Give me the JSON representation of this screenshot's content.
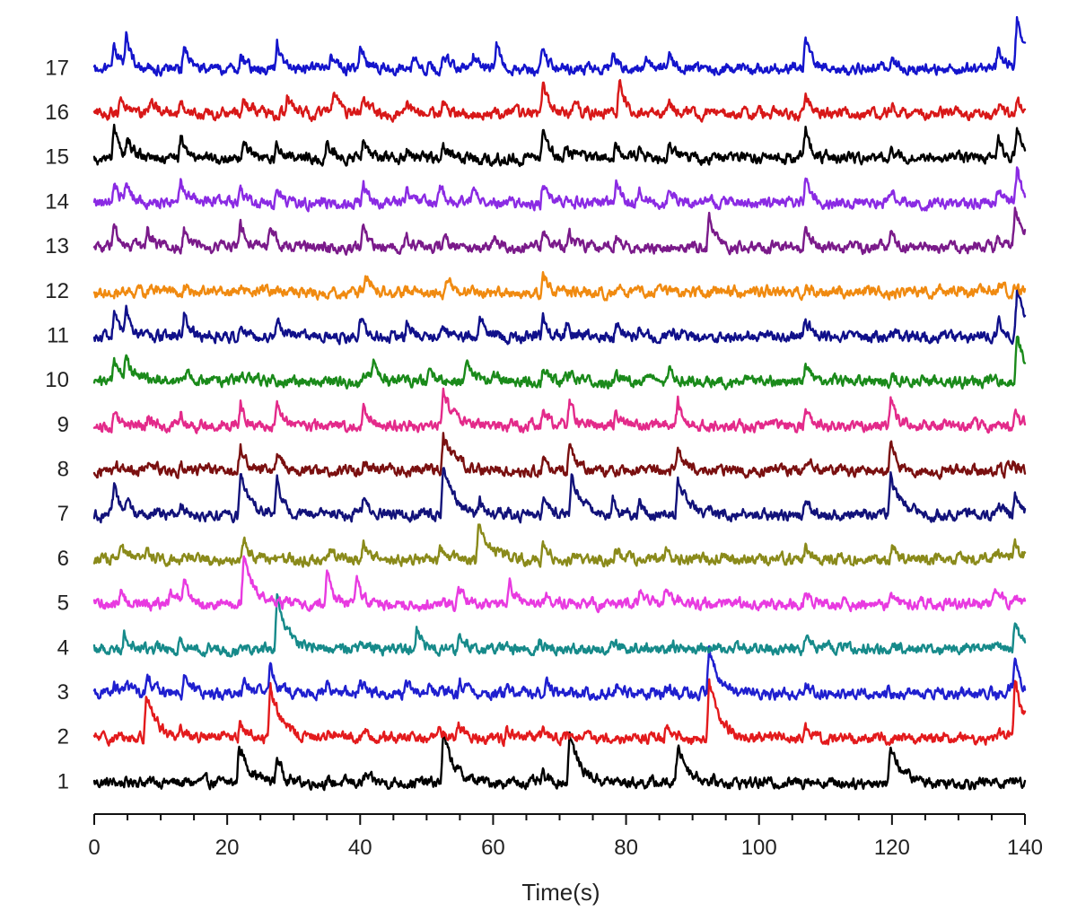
{
  "chart_data": {
    "type": "line",
    "xlabel": "Time(s)",
    "xlim": [
      0,
      140
    ],
    "x_major_ticks": [
      0,
      20,
      40,
      60,
      80,
      100,
      120,
      140
    ],
    "x_minor_step": 5,
    "ylabel": "",
    "grid": false,
    "series": [
      {
        "name": "1",
        "color": "#000000",
        "events": [
          [
            6,
            0.08
          ],
          [
            9,
            0.05
          ],
          [
            16,
            0.06
          ],
          [
            21.8,
            1.0
          ],
          [
            27.5,
            0.7
          ],
          [
            40.8,
            0.18
          ],
          [
            52.5,
            1.3
          ],
          [
            67.5,
            0.2
          ],
          [
            71.5,
            1.3
          ],
          [
            87.8,
            1.0
          ],
          [
            107,
            0.15
          ],
          [
            119.8,
            1.0
          ],
          [
            137.5,
            0.12
          ]
        ]
      },
      {
        "name": "2",
        "color": "#e31a1c",
        "events": [
          [
            7.8,
            1.2
          ],
          [
            13,
            0.3
          ],
          [
            22,
            0.45
          ],
          [
            26.5,
            1.4
          ],
          [
            35,
            0.2
          ],
          [
            40.5,
            0.25
          ],
          [
            52,
            0.25
          ],
          [
            54.8,
            0.4
          ],
          [
            62,
            0.2
          ],
          [
            67.5,
            0.25
          ],
          [
            78,
            0.12
          ],
          [
            86,
            0.2
          ],
          [
            92.5,
            1.5
          ],
          [
            107,
            0.2
          ],
          [
            135.5,
            0.15
          ],
          [
            138.5,
            1.5
          ]
        ]
      },
      {
        "name": "3",
        "color": "#1f1fcf",
        "events": [
          [
            3,
            0.2
          ],
          [
            5,
            0.3
          ],
          [
            8,
            0.6
          ],
          [
            13.5,
            0.6
          ],
          [
            22.5,
            0.35
          ],
          [
            26.5,
            0.8
          ],
          [
            35,
            0.25
          ],
          [
            40,
            0.35
          ],
          [
            47,
            0.25
          ],
          [
            50,
            0.2
          ],
          [
            55,
            0.3
          ],
          [
            62,
            0.2
          ],
          [
            68,
            0.4
          ],
          [
            78.5,
            0.25
          ],
          [
            86,
            0.2
          ],
          [
            92.5,
            1.1
          ],
          [
            107,
            0.3
          ],
          [
            119.5,
            0.1
          ],
          [
            137.5,
            0.25
          ],
          [
            138.5,
            0.9
          ]
        ]
      },
      {
        "name": "4",
        "color": "#168a8a",
        "events": [
          [
            4.5,
            0.4
          ],
          [
            13,
            0.25
          ],
          [
            22,
            0.15
          ],
          [
            27.5,
            1.3
          ],
          [
            40,
            0.3
          ],
          [
            48.5,
            0.5
          ],
          [
            55,
            0.3
          ],
          [
            67,
            0.2
          ],
          [
            78,
            0.2
          ],
          [
            87,
            0.15
          ],
          [
            107,
            0.25
          ],
          [
            120,
            0.12
          ],
          [
            138.5,
            0.8
          ]
        ]
      },
      {
        "name": "5",
        "color": "#e83ae0",
        "events": [
          [
            4,
            0.3
          ],
          [
            11.5,
            0.4
          ],
          [
            13.5,
            0.7
          ],
          [
            22.5,
            1.2
          ],
          [
            35,
            0.9
          ],
          [
            39.5,
            0.6
          ],
          [
            54.8,
            0.6
          ],
          [
            62.5,
            0.5
          ],
          [
            68,
            0.3
          ],
          [
            82,
            0.3
          ],
          [
            86,
            0.5
          ],
          [
            107,
            0.3
          ],
          [
            120,
            0.15
          ],
          [
            135.5,
            0.5
          ]
        ]
      },
      {
        "name": "6",
        "color": "#8a8a1a",
        "events": [
          [
            4,
            0.3
          ],
          [
            8,
            0.3
          ],
          [
            13.5,
            0.25
          ],
          [
            22.5,
            0.55
          ],
          [
            35.5,
            0.25
          ],
          [
            40.5,
            0.45
          ],
          [
            52,
            0.3
          ],
          [
            57.8,
            1.05
          ],
          [
            67.5,
            0.5
          ],
          [
            78.5,
            0.35
          ],
          [
            86,
            0.3
          ],
          [
            107,
            0.35
          ],
          [
            120,
            0.35
          ],
          [
            135.5,
            0.2
          ],
          [
            138.5,
            0.4
          ]
        ]
      },
      {
        "name": "7",
        "color": "#12127a",
        "events": [
          [
            3,
            0.7
          ],
          [
            5,
            0.3
          ],
          [
            13,
            0.4
          ],
          [
            22,
            1.0
          ],
          [
            27.5,
            0.9
          ],
          [
            34,
            0.3
          ],
          [
            40.5,
            0.45
          ],
          [
            52.5,
            1.25
          ],
          [
            58,
            0.3
          ],
          [
            67.5,
            0.5
          ],
          [
            71.8,
            1.0
          ],
          [
            78,
            0.4
          ],
          [
            82,
            0.3
          ],
          [
            87.8,
            1.0
          ],
          [
            107,
            0.4
          ],
          [
            119.8,
            1.0
          ],
          [
            136,
            0.3
          ],
          [
            138.5,
            0.6
          ]
        ]
      },
      {
        "name": "8",
        "color": "#7a1010",
        "events": [
          [
            3,
            0.2
          ],
          [
            8,
            0.2
          ],
          [
            13,
            0.2
          ],
          [
            22,
            0.65
          ],
          [
            27.5,
            0.45
          ],
          [
            40.5,
            0.3
          ],
          [
            52.5,
            0.95
          ],
          [
            67.5,
            0.3
          ],
          [
            71.5,
            0.6
          ],
          [
            87.8,
            0.75
          ],
          [
            107,
            0.3
          ],
          [
            119.8,
            0.75
          ],
          [
            137.5,
            0.3
          ]
        ]
      },
      {
        "name": "9",
        "color": "#e32a8a",
        "events": [
          [
            3,
            0.3
          ],
          [
            8,
            0.2
          ],
          [
            13,
            0.3
          ],
          [
            22,
            0.65
          ],
          [
            27.5,
            0.6
          ],
          [
            40.5,
            0.45
          ],
          [
            52.5,
            0.95
          ],
          [
            67.5,
            0.45
          ],
          [
            71.5,
            0.6
          ],
          [
            78.5,
            0.35
          ],
          [
            87.8,
            0.7
          ],
          [
            107,
            0.35
          ],
          [
            119.8,
            0.7
          ],
          [
            138.5,
            0.4
          ]
        ]
      },
      {
        "name": "10",
        "color": "#1a8a1a",
        "events": [
          [
            3,
            0.6
          ],
          [
            4.8,
            0.7
          ],
          [
            13.5,
            0.3
          ],
          [
            22,
            0.2
          ],
          [
            40.5,
            0.3
          ],
          [
            42,
            0.45
          ],
          [
            50.5,
            0.2
          ],
          [
            56,
            0.5
          ],
          [
            60,
            0.2
          ],
          [
            67.5,
            0.35
          ],
          [
            71,
            0.2
          ],
          [
            78.5,
            0.25
          ],
          [
            86.5,
            0.3
          ],
          [
            107,
            0.45
          ],
          [
            120,
            0.15
          ],
          [
            138.8,
            1.2
          ]
        ]
      },
      {
        "name": "11",
        "color": "#10108a",
        "events": [
          [
            3,
            0.6
          ],
          [
            4.8,
            0.6
          ],
          [
            13.5,
            0.6
          ],
          [
            22,
            0.3
          ],
          [
            27.5,
            0.4
          ],
          [
            40,
            0.5
          ],
          [
            47,
            0.3
          ],
          [
            52.5,
            0.35
          ],
          [
            58,
            0.5
          ],
          [
            67.5,
            0.5
          ],
          [
            71,
            0.3
          ],
          [
            78.5,
            0.35
          ],
          [
            82,
            0.3
          ],
          [
            86.5,
            0.3
          ],
          [
            107,
            0.55
          ],
          [
            120,
            0.15
          ],
          [
            136,
            0.5
          ],
          [
            138.8,
            1.2
          ]
        ]
      },
      {
        "name": "12",
        "color": "#f08a10",
        "events": [
          [
            8.5,
            0.15
          ],
          [
            13.5,
            0.15
          ],
          [
            22,
            0.15
          ],
          [
            27.5,
            0.1
          ],
          [
            40.8,
            0.6
          ],
          [
            53,
            0.35
          ],
          [
            67.5,
            0.55
          ],
          [
            86.5,
            0.15
          ],
          [
            107,
            0.1
          ],
          [
            136,
            0.2
          ],
          [
            138.5,
            0.15
          ]
        ]
      },
      {
        "name": "13",
        "color": "#7a1a8a",
        "events": [
          [
            3,
            0.6
          ],
          [
            8,
            0.5
          ],
          [
            13.5,
            0.5
          ],
          [
            22,
            0.7
          ],
          [
            26.5,
            0.6
          ],
          [
            40.5,
            0.5
          ],
          [
            47,
            0.25
          ],
          [
            52.5,
            0.3
          ],
          [
            60,
            0.25
          ],
          [
            67.5,
            0.5
          ],
          [
            71.5,
            0.3
          ],
          [
            78.5,
            0.3
          ],
          [
            92.5,
            0.9
          ],
          [
            107,
            0.5
          ],
          [
            119.8,
            0.3
          ],
          [
            136,
            0.3
          ],
          [
            138.5,
            1.0
          ]
        ]
      },
      {
        "name": "14",
        "color": "#8a2ae3",
        "events": [
          [
            3,
            0.5
          ],
          [
            4.8,
            0.5
          ],
          [
            13,
            0.5
          ],
          [
            22,
            0.4
          ],
          [
            27.5,
            0.4
          ],
          [
            40.5,
            0.5
          ],
          [
            47,
            0.3
          ],
          [
            52,
            0.4
          ],
          [
            57,
            0.4
          ],
          [
            67.5,
            0.6
          ],
          [
            71,
            0.3
          ],
          [
            78.5,
            0.5
          ],
          [
            82,
            0.3
          ],
          [
            86.5,
            0.4
          ],
          [
            107,
            0.7
          ],
          [
            120,
            0.3
          ],
          [
            136,
            0.35
          ],
          [
            138.8,
            0.9
          ]
        ]
      },
      {
        "name": "15",
        "color": "#000000",
        "events": [
          [
            3,
            0.75
          ],
          [
            5,
            0.5
          ],
          [
            13,
            0.6
          ],
          [
            22.5,
            0.55
          ],
          [
            27.5,
            0.35
          ],
          [
            35,
            0.4
          ],
          [
            40.5,
            0.5
          ],
          [
            47,
            0.25
          ],
          [
            52.5,
            0.35
          ],
          [
            67.5,
            0.65
          ],
          [
            71,
            0.3
          ],
          [
            78.5,
            0.45
          ],
          [
            82,
            0.3
          ],
          [
            86.5,
            0.35
          ],
          [
            107,
            0.75
          ],
          [
            120,
            0.25
          ],
          [
            136,
            0.55
          ],
          [
            138.8,
            0.8
          ]
        ]
      },
      {
        "name": "16",
        "color": "#d81818",
        "events": [
          [
            4,
            0.45
          ],
          [
            8.5,
            0.3
          ],
          [
            13,
            0.3
          ],
          [
            22.5,
            0.45
          ],
          [
            29,
            0.45
          ],
          [
            36,
            0.6
          ],
          [
            40.5,
            0.35
          ],
          [
            47,
            0.25
          ],
          [
            52.5,
            0.3
          ],
          [
            67.5,
            0.85
          ],
          [
            72,
            0.25
          ],
          [
            79,
            0.9
          ],
          [
            86.5,
            0.35
          ],
          [
            107,
            0.55
          ],
          [
            120,
            0.2
          ],
          [
            136,
            0.3
          ],
          [
            138.8,
            0.4
          ]
        ]
      },
      {
        "name": "17",
        "color": "#1414cc",
        "events": [
          [
            3,
            0.7
          ],
          [
            4.8,
            0.85
          ],
          [
            13.5,
            0.6
          ],
          [
            22,
            0.3
          ],
          [
            27.5,
            0.7
          ],
          [
            35.5,
            0.3
          ],
          [
            40,
            0.5
          ],
          [
            48,
            0.3
          ],
          [
            52.5,
            0.45
          ],
          [
            57,
            0.4
          ],
          [
            60.5,
            0.6
          ],
          [
            67.5,
            0.55
          ],
          [
            78,
            0.45
          ],
          [
            83,
            0.4
          ],
          [
            86.5,
            0.3
          ],
          [
            107,
            0.85
          ],
          [
            120,
            0.25
          ],
          [
            136,
            0.6
          ],
          [
            138.8,
            1.3
          ]
        ]
      }
    ]
  }
}
